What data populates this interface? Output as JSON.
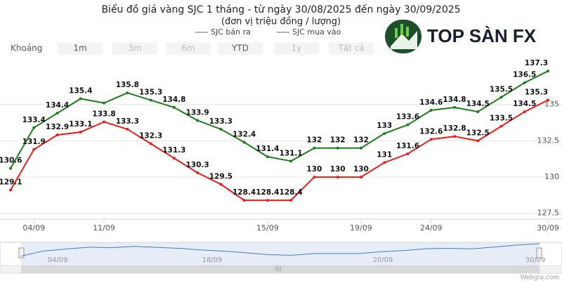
{
  "ui": {
    "range_label": "Khoảng",
    "range_buttons": [
      "1m",
      "3m",
      "6m",
      "YTD",
      "1y",
      "Tất cả"
    ],
    "logo": "TOP SÀN FX",
    "credit": "Webgia.com",
    "navigator_labels": [
      "04/09",
      "18/09",
      "20/09",
      "30/09"
    ]
  },
  "chart_data": {
    "type": "line",
    "title": "Biểu đồ giá vàng SJC 1 tháng - từ ngày 30/08/2025 đến ngày 30/09/2025",
    "subtitle": "(đơn vị triệu đồng / lượng)",
    "categories": [
      null,
      "04/09",
      null,
      null,
      "11/09",
      null,
      null,
      null,
      null,
      null,
      null,
      "15/09",
      null,
      null,
      null,
      "19/09",
      null,
      null,
      "24/09",
      null,
      null,
      null,
      null,
      "30/09"
    ],
    "series": [
      {
        "name": "SJC bán ra",
        "color": "#1e7b1e",
        "values": [
          130.6,
          133.4,
          134.4,
          135.4,
          135.1,
          135.8,
          135.3,
          134.8,
          133.9,
          133.3,
          132.4,
          131.4,
          131.1,
          132,
          132,
          132,
          133,
          133.6,
          134.6,
          134.8,
          134.5,
          135.5,
          136.5,
          137.3
        ],
        "value_labels": [
          "130.6",
          "133.4",
          "134.4",
          "135.4",
          null,
          "135.8",
          "135.3",
          "134.8",
          "133.9",
          "133.3",
          "132.4",
          "131.4",
          "131.1",
          "132",
          "132",
          "132",
          "133",
          "133.6",
          "134.6",
          "134.8",
          "134.5",
          "135.5",
          "136.5",
          "137.3"
        ]
      },
      {
        "name": "SJC mua vào",
        "color": "#e3201f",
        "values": [
          129.1,
          131.9,
          132.9,
          133.1,
          133.8,
          133.3,
          132.3,
          131.3,
          130.3,
          129.5,
          128.4,
          128.4,
          128.4,
          130,
          130,
          130,
          131,
          131.6,
          132.6,
          132.8,
          132.5,
          133.5,
          134.5,
          135.3
        ]
      }
    ],
    "ylim": [
      127.1,
      137.6
    ],
    "yticks": [
      127.5,
      130,
      132.5,
      135
    ],
    "grid": true,
    "y_axis_side": "right"
  }
}
